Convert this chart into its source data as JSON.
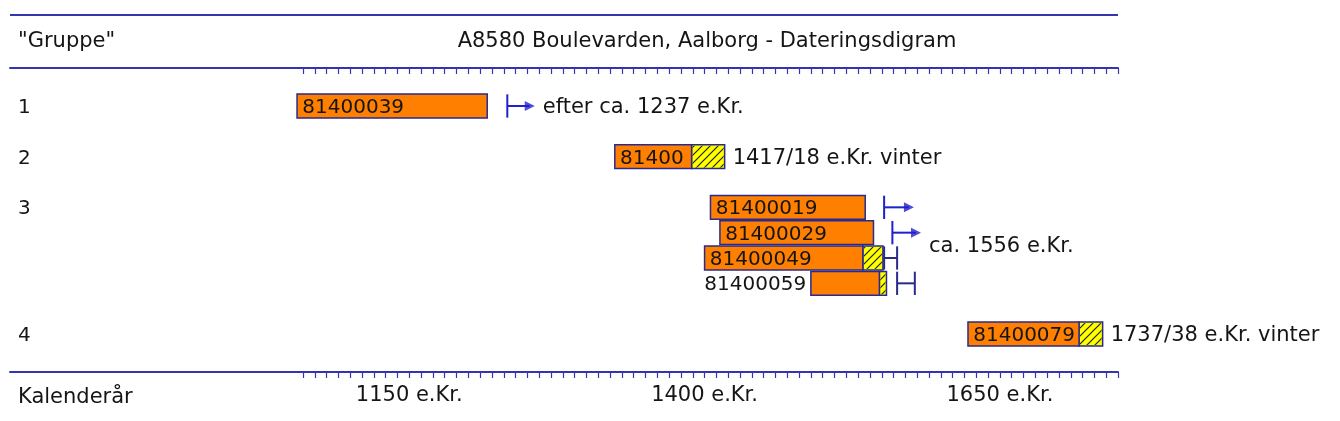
{
  "chart_data": {
    "type": "bar",
    "orientation": "horizontal",
    "title": "A8580 Boulevarden, Aalborg - Dateringsdigram",
    "ylabel": "\"Gruppe\"",
    "xlabel": "Kalenderår",
    "categories": [
      null,
      "1",
      null,
      "2",
      null,
      "3",
      null,
      null,
      null,
      null,
      "4",
      null
    ],
    "series": [
      {
        "name": "81400039",
        "color": "#ff7f00",
        "base": [
          null,
          1055,
          null,
          null,
          null,
          null,
          null,
          null,
          null,
          null,
          null,
          null
        ],
        "values": [
          null,
          161,
          null,
          null,
          null,
          null,
          null,
          null,
          null,
          null,
          null,
          null
        ]
      },
      {
        "name": "81400",
        "color": "#ff7f00",
        "base": [
          null,
          null,
          null,
          1324,
          null,
          null,
          null,
          null,
          null,
          null,
          null,
          null
        ],
        "values": [
          null,
          null,
          null,
          65,
          null,
          null,
          null,
          null,
          null,
          null,
          null,
          null
        ]
      },
      {
        "name": "81400019",
        "color": "#ff7f00",
        "base": [
          null,
          null,
          null,
          null,
          null,
          1405,
          null,
          null,
          null,
          null,
          null,
          null
        ],
        "values": [
          null,
          null,
          null,
          null,
          null,
          131,
          null,
          null,
          null,
          null,
          null,
          null
        ]
      },
      {
        "name": "81400029",
        "color": "#ff7f00",
        "base": [
          null,
          null,
          null,
          null,
          null,
          null,
          1413,
          null,
          null,
          null,
          null,
          null
        ],
        "values": [
          null,
          null,
          null,
          null,
          null,
          null,
          130,
          null,
          null,
          null,
          null,
          null
        ]
      },
      {
        "name": "81400049",
        "color": "#ff7f00",
        "base": [
          null,
          null,
          null,
          null,
          null,
          null,
          null,
          1400,
          null,
          null,
          null,
          null
        ],
        "values": [
          null,
          null,
          null,
          null,
          null,
          null,
          null,
          134,
          null,
          null,
          null,
          null
        ]
      },
      {
        "name": "81400059",
        "color": "#ff7f00",
        "base": [
          null,
          null,
          null,
          null,
          null,
          null,
          null,
          null,
          1490,
          null,
          null,
          null
        ],
        "values": [
          null,
          null,
          null,
          null,
          null,
          null,
          null,
          null,
          58,
          null,
          null,
          null
        ]
      },
      {
        "name": "81400079",
        "color": "#ff7f00",
        "base": [
          null,
          null,
          null,
          null,
          null,
          null,
          null,
          null,
          null,
          null,
          1623,
          null
        ],
        "values": [
          null,
          null,
          null,
          null,
          null,
          null,
          null,
          null,
          null,
          null,
          94,
          null
        ]
      },
      {
        "color": "#ffff00",
        "base": [
          null,
          null,
          null,
          1389,
          null,
          null,
          null,
          1534,
          1548,
          null,
          1717,
          null
        ],
        "values": [
          null,
          null,
          null,
          28,
          null,
          null,
          null,
          17,
          6,
          null,
          20,
          null
        ],
        "errors": [
          null,
          null,
          null,
          null,
          null,
          null,
          null,
          [
            1552,
            1563
          ],
          [
            1563,
            1578
          ],
          null,
          null,
          null
        ]
      },
      {
        "type": "scatter",
        "color": "#2020cc",
        "marker": "triangle",
        "values": [
          null,
          1252,
          null,
          null,
          null,
          1573,
          1579,
          null,
          null,
          null,
          null,
          null
        ],
        "errors": [
          null,
          [
            1233,
            1252
          ],
          null,
          null,
          null,
          [
            1552,
            1573
          ],
          [
            1559,
            1579
          ],
          null,
          null,
          null,
          null,
          null
        ]
      }
    ],
    "xlim": [
      812,
      1750
    ],
    "xticks": [
      {
        "value": 1060,
        "label": null
      },
      {
        "value": 1070,
        "label": null
      },
      {
        "value": 1080,
        "label": null
      },
      {
        "value": 1090,
        "label": null
      },
      {
        "value": 1100,
        "label": null
      },
      {
        "value": 1110,
        "label": null
      },
      {
        "value": 1120,
        "label": null
      },
      {
        "value": 1130,
        "label": null
      },
      {
        "value": 1140,
        "label": null
      },
      {
        "value": 1150,
        "label": "1150 e.Kr."
      },
      {
        "value": 1160,
        "label": null
      },
      {
        "value": 1170,
        "label": null
      },
      {
        "value": 1180,
        "label": null
      },
      {
        "value": 1190,
        "label": null
      },
      {
        "value": 1200,
        "label": null
      },
      {
        "value": 1210,
        "label": null
      },
      {
        "value": 1220,
        "label": null
      },
      {
        "value": 1230,
        "label": null
      },
      {
        "value": 1240,
        "label": null
      },
      {
        "value": 1250,
        "label": null
      },
      {
        "value": 1260,
        "label": null
      },
      {
        "value": 1270,
        "label": null
      },
      {
        "value": 1280,
        "label": null
      },
      {
        "value": 1290,
        "label": null
      },
      {
        "value": 1300,
        "label": null
      },
      {
        "value": 1310,
        "label": null
      },
      {
        "value": 1320,
        "label": null
      },
      {
        "value": 1330,
        "label": null
      },
      {
        "value": 1340,
        "label": null
      },
      {
        "value": 1350,
        "label": null
      },
      {
        "value": 1360,
        "label": null
      },
      {
        "value": 1370,
        "label": null
      },
      {
        "value": 1380,
        "label": null
      },
      {
        "value": 1390,
        "label": null
      },
      {
        "value": 1400,
        "label": "1400 e.Kr."
      },
      {
        "value": 1410,
        "label": null
      },
      {
        "value": 1420,
        "label": null
      },
      {
        "value": 1430,
        "label": null
      },
      {
        "value": 1440,
        "label": null
      },
      {
        "value": 1450,
        "label": null
      },
      {
        "value": 1460,
        "label": null
      },
      {
        "value": 1470,
        "label": null
      },
      {
        "value": 1480,
        "label": null
      },
      {
        "value": 1490,
        "label": null
      },
      {
        "value": 1500,
        "label": null
      },
      {
        "value": 1510,
        "label": null
      },
      {
        "value": 1520,
        "label": null
      },
      {
        "value": 1530,
        "label": null
      },
      {
        "value": 1540,
        "label": null
      },
      {
        "value": 1550,
        "label": null
      },
      {
        "value": 1560,
        "label": null
      },
      {
        "value": 1570,
        "label": null
      },
      {
        "value": 1580,
        "label": null
      },
      {
        "value": 1590,
        "label": null
      },
      {
        "value": 1600,
        "label": null
      },
      {
        "value": 1610,
        "label": null
      },
      {
        "value": 1620,
        "label": null
      },
      {
        "value": 1630,
        "label": null
      },
      {
        "value": 1640,
        "label": null
      },
      {
        "value": 1650,
        "label": "1650 e.Kr."
      },
      {
        "value": 1660,
        "label": null
      },
      {
        "value": 1670,
        "label": null
      },
      {
        "value": 1680,
        "label": null
      },
      {
        "value": 1690,
        "label": null
      },
      {
        "value": 1700,
        "label": null
      },
      {
        "value": 1710,
        "label": null
      },
      {
        "value": 1720,
        "label": null
      },
      {
        "value": 1730,
        "label": null
      },
      {
        "value": 1740,
        "label": null
      },
      {
        "value": 1750,
        "label": null
      }
    ],
    "annotations": [
      "efter ca. 1237 e.Kr.",
      "1417/18 e.Kr. vinter",
      "ca. 1556 e.Kr.",
      "1737/38 e.Kr. vinter"
    ]
  }
}
